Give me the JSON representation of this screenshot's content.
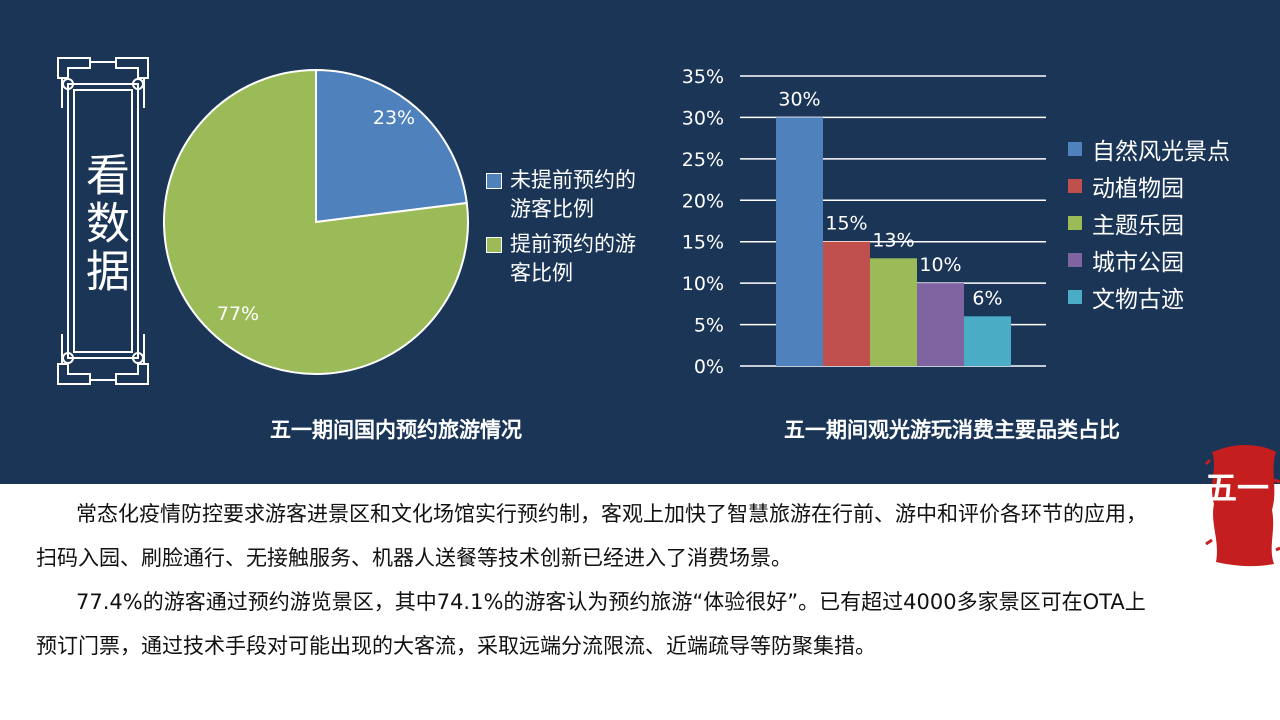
{
  "side_title": "看数据",
  "badge_text": "五一",
  "colors": {
    "panel": "#1b3557",
    "blue": "#4f81bd",
    "red": "#c0504d",
    "green": "#9bbb59",
    "purple": "#8064a2",
    "cyan": "#4bacc6"
  },
  "chart_data": [
    {
      "type": "pie",
      "title": "五一期间国内预约旅游情况",
      "slices": [
        {
          "label": "未提前预约的游客比例",
          "value": 23,
          "display": "23%",
          "color": "#4f81bd"
        },
        {
          "label": "提前预约的游客比例",
          "value": 77,
          "display": "77%",
          "color": "#9bbb59"
        }
      ],
      "legend_lines": [
        [
          "未提前预约的",
          "游客比例"
        ],
        [
          "提前预约的游",
          "客比例"
        ]
      ],
      "legend_position": "right"
    },
    {
      "type": "bar",
      "title": "五一期间观光游玩消费主要品类占比",
      "categories": [
        "自然风光景点",
        "动植物园",
        "主题乐园",
        "城市公园",
        "文物古迹"
      ],
      "values": [
        30,
        15,
        13,
        10,
        6
      ],
      "data_labels": [
        "30%",
        "15%",
        "13%",
        "10%",
        "6%"
      ],
      "colors": [
        "#4f81bd",
        "#c0504d",
        "#9bbb59",
        "#8064a2",
        "#4bacc6"
      ],
      "ylim": [
        0,
        35
      ],
      "yticks": [
        "0%",
        "5%",
        "10%",
        "15%",
        "20%",
        "25%",
        "30%",
        "35%"
      ],
      "grid": true,
      "legend_position": "right"
    }
  ],
  "paragraphs": [
    "常态化疫情防控要求游客进景区和文化场馆实行预约制，客观上加快了智慧旅游在行前、游中和评价各环节的应用，扫码入园、刷脸通行、无接触服务、机器人送餐等技术创新已经进入了消费场景。",
    "77.4%的游客通过预约游览景区，其中74.1%的游客认为预约旅游“体验很好”。已有超过4000多家景区可在OTA上预订门票，通过技术手段对可能出现的大客流，采取远端分流限流、近端疏导等防聚集措。"
  ]
}
